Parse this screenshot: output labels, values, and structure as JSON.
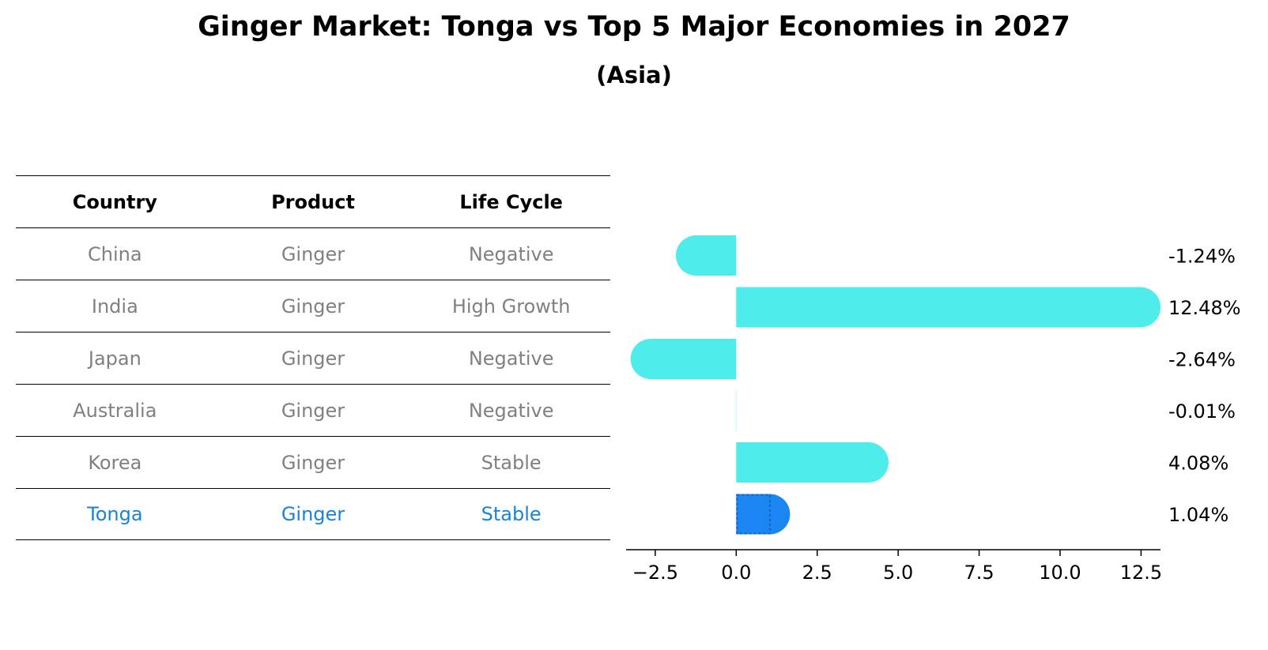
{
  "title": "Ginger Market: Tonga vs Top 5 Major Economies in 2027",
  "subtitle": "(Asia)",
  "table": {
    "headers": [
      "Country",
      "Product",
      "Life Cycle"
    ],
    "rows": [
      [
        "China",
        "Ginger",
        "Negative"
      ],
      [
        "India",
        "Ginger",
        "High Growth"
      ],
      [
        "Japan",
        "Ginger",
        "Negative"
      ],
      [
        "Australia",
        "Ginger",
        "Negative"
      ],
      [
        "Korea",
        "Ginger",
        "Stable"
      ],
      [
        "Tonga",
        "Ginger",
        "Stable"
      ]
    ]
  },
  "chart_data": {
    "type": "bar",
    "orientation": "horizontal",
    "categories": [
      "China",
      "India",
      "Japan",
      "Australia",
      "Korea",
      "Tonga"
    ],
    "values": [
      -1.24,
      12.48,
      -2.64,
      -0.01,
      4.08,
      1.04
    ],
    "value_labels": [
      "-1.24%",
      "12.48%",
      "-2.64%",
      "-0.01%",
      "4.08%",
      "1.04%"
    ],
    "xlim": [
      -3.4,
      13.1
    ],
    "xticks": [
      -2.5,
      0.0,
      2.5,
      5.0,
      7.5,
      10.0,
      12.5
    ],
    "xtick_labels": [
      "−2.5",
      "0.0",
      "2.5",
      "5.0",
      "7.5",
      "10.0",
      "12.5"
    ],
    "highlight": "Tonga",
    "colors": {
      "bar": "#4eeceb",
      "highlight": "#1b86f2"
    }
  }
}
